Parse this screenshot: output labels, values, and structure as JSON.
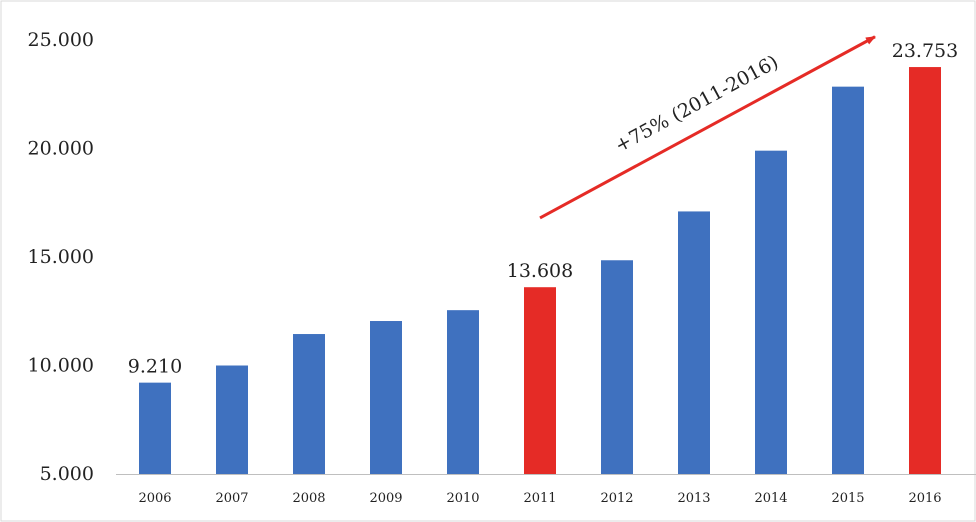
{
  "chart_data": {
    "type": "bar",
    "categories": [
      "2006",
      "2007",
      "2008",
      "2009",
      "2010",
      "2011",
      "2012",
      "2013",
      "2014",
      "2015",
      "2016"
    ],
    "values": [
      9210,
      10000,
      11450,
      12050,
      12550,
      13608,
      14850,
      17100,
      19900,
      22850,
      23753
    ],
    "y_tick_labels": [
      "5.000",
      "10.000",
      "15.000",
      "20.000",
      "25.000"
    ],
    "y_ticks": [
      5000,
      10000,
      15000,
      20000,
      25000
    ],
    "ylim": [
      5000,
      25000
    ],
    "grid": false,
    "legend": "none",
    "title": "",
    "xlabel": "",
    "ylabel": "",
    "data_labels": [
      {
        "category": "2006",
        "text": "9.210"
      },
      {
        "category": "2011",
        "text": "13.608"
      },
      {
        "category": "2016",
        "text": "23.753"
      }
    ],
    "highlight_categories": [
      "2011",
      "2016"
    ],
    "annotation": {
      "text": "+75% (2011-2016)",
      "from": {
        "category": "2011",
        "value": 16800
      },
      "to": {
        "category": "2016",
        "value": 25150
      }
    },
    "colors": {
      "bar": "#3f71bf",
      "highlight": "#e52b26",
      "arrow": "#e52b26",
      "axis": "#bfbfbf"
    }
  }
}
